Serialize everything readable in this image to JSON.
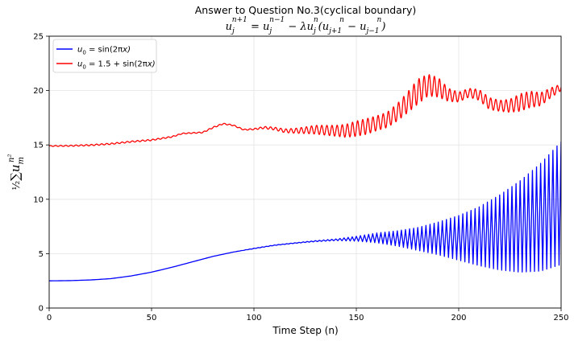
{
  "chart_data": {
    "type": "line",
    "title": "Answer to Question No.3(cyclical boundary)",
    "subtitle": "u_j^{n+1} = u_j^{n−1} − λu_j^n(u_{j+1}^n − u_{j−1}^n)",
    "xlabel": "Time Step (n)",
    "ylabel": "½∑u_m^{n²}",
    "xlim": [
      0,
      250
    ],
    "ylim": [
      0,
      25
    ],
    "xticks": [
      "0",
      "50",
      "100",
      "150",
      "200",
      "250"
    ],
    "yticks": [
      "0",
      "5",
      "10",
      "15",
      "20",
      "25"
    ],
    "grid": true,
    "legend_position": "top-left",
    "series": [
      {
        "name": "u0 = sin(2πx)",
        "color": "#0000ff",
        "oscillation_period_steps": 2,
        "note": "upper envelope / lower envelope",
        "x": [
          0,
          10,
          20,
          30,
          40,
          50,
          60,
          70,
          80,
          90,
          100,
          110,
          120,
          130,
          140,
          150,
          160,
          170,
          180,
          190,
          200,
          210,
          220,
          230,
          240,
          250
        ],
        "upper": [
          2.5,
          2.52,
          2.58,
          2.7,
          2.95,
          3.3,
          3.75,
          4.25,
          4.75,
          5.15,
          5.5,
          5.8,
          6.0,
          6.2,
          6.35,
          6.6,
          6.9,
          7.1,
          7.4,
          7.9,
          8.5,
          9.3,
          10.4,
          11.7,
          13.3,
          15.3
        ],
        "lower": [
          2.5,
          2.52,
          2.58,
          2.7,
          2.95,
          3.3,
          3.75,
          4.25,
          4.75,
          5.15,
          5.45,
          5.75,
          5.95,
          6.1,
          6.2,
          6.15,
          6.0,
          5.7,
          5.3,
          4.9,
          4.4,
          3.9,
          3.5,
          3.3,
          3.4,
          4.0
        ]
      },
      {
        "name": "u0 = 1.5 + sin(2πx)",
        "color": "#ff0000",
        "oscillation_period_steps": 2.5,
        "note": "mean / oscillation amplitude",
        "x": [
          0,
          10,
          20,
          30,
          40,
          50,
          60,
          65,
          70,
          75,
          80,
          85,
          90,
          95,
          100,
          105,
          110,
          115,
          120,
          125,
          130,
          135,
          140,
          145,
          150,
          155,
          160,
          165,
          170,
          175,
          180,
          185,
          190,
          195,
          200,
          205,
          210,
          215,
          220,
          225,
          230,
          235,
          240,
          245,
          250
        ],
        "mean": [
          14.9,
          14.92,
          14.98,
          15.1,
          15.3,
          15.45,
          15.75,
          16.05,
          16.1,
          16.15,
          16.6,
          16.95,
          16.8,
          16.4,
          16.45,
          16.6,
          16.5,
          16.3,
          16.3,
          16.35,
          16.4,
          16.35,
          16.3,
          16.3,
          16.5,
          16.7,
          17.0,
          17.3,
          18.0,
          18.9,
          19.9,
          20.5,
          20.3,
          19.6,
          19.4,
          19.8,
          19.6,
          18.8,
          18.6,
          18.6,
          18.9,
          19.2,
          19.2,
          19.8,
          20.3
        ],
        "amplitude": [
          0.04,
          0.05,
          0.06,
          0.06,
          0.06,
          0.06,
          0.05,
          0.04,
          0.04,
          0.05,
          0.06,
          0.05,
          0.05,
          0.05,
          0.06,
          0.1,
          0.13,
          0.17,
          0.22,
          0.3,
          0.4,
          0.45,
          0.5,
          0.6,
          0.7,
          0.72,
          0.68,
          0.7,
          0.8,
          0.95,
          1.15,
          1.0,
          0.9,
          0.6,
          0.45,
          0.4,
          0.5,
          0.55,
          0.5,
          0.6,
          0.8,
          0.75,
          0.6,
          0.45,
          0.3
        ]
      }
    ]
  }
}
